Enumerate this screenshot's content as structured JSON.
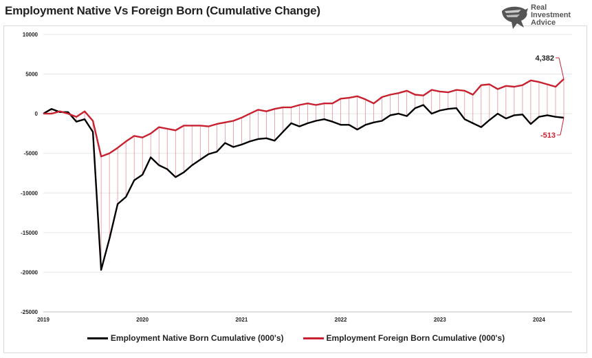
{
  "title": "Employment Native Vs Foreign Born (Cumulative Change)",
  "logo": {
    "line1": "Real",
    "line2": "Investment",
    "line3": "Advice",
    "icon": "eagle-head-icon"
  },
  "colors": {
    "native": "#000000",
    "foreign": "#c8202e",
    "fill_line": "#c8202e",
    "grid": "#e6e6e6"
  },
  "annotations": {
    "foreign_last": "4,382",
    "native_last": "-513"
  },
  "legend": {
    "native": "Employment Native Born Cumulative (000's)",
    "foreign": "Employment Foreign Born Cumulative (000's)"
  },
  "chart_data": {
    "type": "line",
    "title": "Employment Native Vs Foreign Born (Cumulative Change)",
    "ylim": [
      -25000,
      10000
    ],
    "yticks": [
      10000,
      5000,
      0,
      -5000,
      -10000,
      -15000,
      -20000,
      -25000
    ],
    "ytick_labels": [
      "10000",
      "5000",
      "0",
      "-5000",
      "-10000",
      "-15000",
      "-20000",
      "-25000"
    ],
    "xlim": [
      0,
      64
    ],
    "xticks": [
      0,
      12,
      24,
      36,
      48,
      60
    ],
    "xtick_labels": [
      "2019",
      "2020",
      "2021",
      "2022",
      "2023",
      "2024"
    ],
    "grid": "horizontal",
    "legend_position": "bottom",
    "series": [
      {
        "name": "Employment Native Born Cumulative (000's)",
        "color": "#000000",
        "values": [
          0,
          600,
          200,
          200,
          -1000,
          -700,
          -2300,
          -19700,
          -15800,
          -11400,
          -10500,
          -8400,
          -7700,
          -5500,
          -6500,
          -7000,
          -8000,
          -7400,
          -6500,
          -5800,
          -5100,
          -4800,
          -3700,
          -4200,
          -3900,
          -3500,
          -3200,
          -3100,
          -3400,
          -2300,
          -1200,
          -1600,
          -1200,
          -900,
          -700,
          -1000,
          -1400,
          -1400,
          -2000,
          -1400,
          -1100,
          -900,
          -200,
          0,
          -300,
          700,
          1100,
          0,
          400,
          600,
          700,
          -700,
          -1200,
          -1700,
          -800,
          0,
          -600,
          -200,
          -100,
          -1300,
          -400,
          -200,
          -400,
          -513
        ]
      },
      {
        "name": "Employment Foreign Born Cumulative (000's)",
        "color": "#c8202e",
        "values": [
          0,
          0,
          300,
          0,
          -400,
          300,
          -900,
          -5400,
          -5000,
          -4300,
          -3500,
          -2800,
          -3000,
          -2500,
          -1700,
          -1900,
          -2100,
          -1500,
          -1500,
          -1500,
          -1600,
          -1300,
          -1100,
          -900,
          -500,
          0,
          500,
          300,
          600,
          800,
          800,
          1100,
          1300,
          1100,
          1300,
          1300,
          1900,
          2000,
          2200,
          1800,
          1300,
          2100,
          2400,
          2600,
          2900,
          2400,
          2300,
          3000,
          2800,
          2700,
          3000,
          2900,
          2400,
          3600,
          3700,
          3100,
          3500,
          3400,
          3600,
          4200,
          4000,
          3700,
          3400,
          4382
        ]
      }
    ]
  }
}
